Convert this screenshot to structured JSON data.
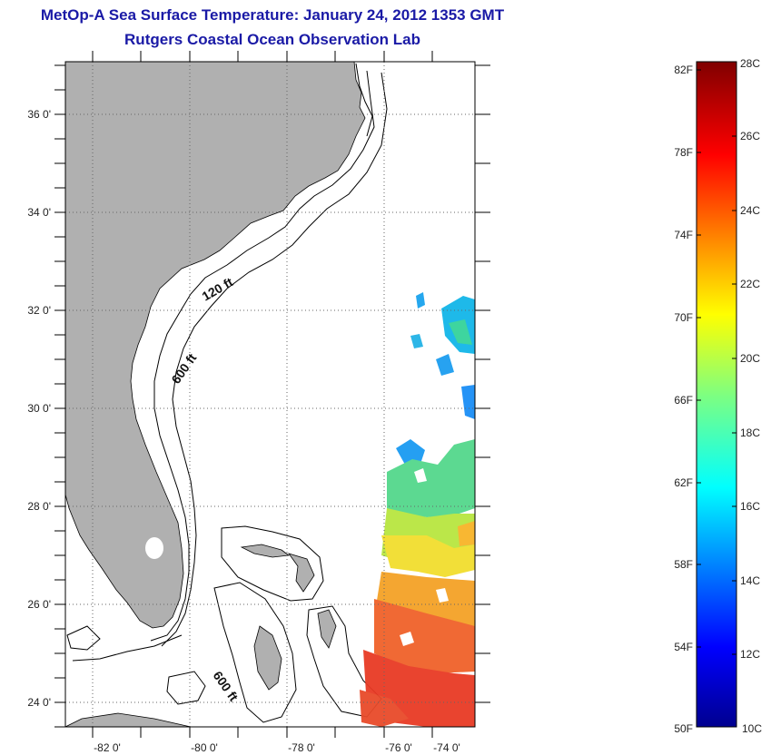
{
  "header": {
    "title": "MetOp-A Sea Surface Temperature:  January 24, 2012 1353 GMT",
    "subtitle": "Rutgers Coastal Ocean Observation Lab"
  },
  "map": {
    "lat_ticks": [
      "36 0'",
      "34 0'",
      "32 0'",
      "30 0'",
      "28 0'",
      "26 0'",
      "24 0'"
    ],
    "lon_ticks": [
      "-82 0'",
      "-80 0'",
      "-78 0'",
      "-76 0'",
      "-74 0'"
    ],
    "isobath_labels": [
      "120 ft",
      "600 ft",
      "600 ft"
    ],
    "colors": {
      "land": "#b0b0b0",
      "ocean": "#ffffff",
      "frame": "#000000"
    }
  },
  "colorbar": {
    "fahrenheit_labels": [
      "82F",
      "78F",
      "74F",
      "70F",
      "66F",
      "62F",
      "58F",
      "54F",
      "50F"
    ],
    "celsius_labels": [
      "28C",
      "26C",
      "24C",
      "22C",
      "20C",
      "18C",
      "16C",
      "14C",
      "12C",
      "10C"
    ],
    "range_c": [
      10,
      28
    ]
  }
}
